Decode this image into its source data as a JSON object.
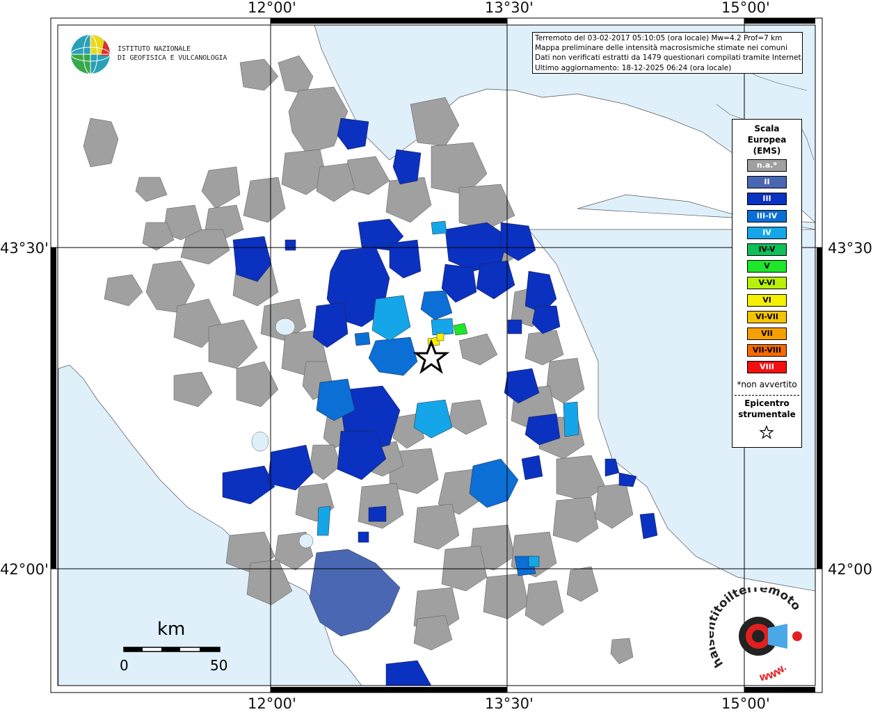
{
  "axes": {
    "top_lon_labels": [
      "12°00'",
      "13°30'",
      "15°00'"
    ],
    "bottom_lon_labels": [
      "12°00'",
      "13°30'",
      "15°00'"
    ],
    "left_lat_labels": [
      "43°30'",
      "42°00'"
    ],
    "right_lat_labels": [
      "43°30'",
      "42°00'"
    ]
  },
  "institute": {
    "name_line1": "ISTITUTO NAZIONALE",
    "name_line2": "DI GEOFISICA E VULCANOLOGIA"
  },
  "info": {
    "line1": "Terremoto del 03-02-2017 05:10:05 (ora locale) Mw=4.2 Prof=7 km",
    "line2": "Mappa preliminare delle intensità macrosismiche stimate nei comuni",
    "line3": "Dati non verificati estratti da 1479 questionari compilati tramite Internet.",
    "line4": "Ultimo aggiornamento: 18-12-2025 06:24 (ora locale)"
  },
  "legend": {
    "title_line1": "Scala",
    "title_line2": "Europea",
    "title_line3": "(EMS)",
    "items": [
      {
        "label": "n.a.*",
        "color": "#a0a0a0",
        "text_color": "#ffffff"
      },
      {
        "label": "II",
        "color": "#4a67b4",
        "text_color": "#ffffff"
      },
      {
        "label": "III",
        "color": "#0a31c0",
        "text_color": "#ffffff"
      },
      {
        "label": "III-IV",
        "color": "#0b6fd6",
        "text_color": "#ffffff"
      },
      {
        "label": "IV",
        "color": "#14a6e8",
        "text_color": "#ffffff"
      },
      {
        "label": "IV-V",
        "color": "#0fbf5a",
        "text_color": "#000000"
      },
      {
        "label": "V",
        "color": "#1ee62a",
        "text_color": "#000000"
      },
      {
        "label": "V-VI",
        "color": "#b8f00a",
        "text_color": "#000000"
      },
      {
        "label": "VI",
        "color": "#f5f000",
        "text_color": "#000000"
      },
      {
        "label": "VI-VII",
        "color": "#f5c400",
        "text_color": "#000000"
      },
      {
        "label": "VII",
        "color": "#f5a000",
        "text_color": "#000000"
      },
      {
        "label": "VII-VIII",
        "color": "#f56a00",
        "text_color": "#000000"
      },
      {
        "label": "VIII",
        "color": "#f51010",
        "text_color": "#ffffff"
      }
    ],
    "note": "*non avvertito",
    "epicenter_line1": "Epicentro",
    "epicenter_line2": "strumentale"
  },
  "scale_bar": {
    "unit": "km",
    "start": "0",
    "end": "50"
  },
  "watermark": {
    "text": "haisentitoilterremoto.it",
    "url_text": "WWW."
  },
  "colors": {
    "sea": "#dff0fb",
    "land": "#ffffff",
    "na_gray": "#a0a0a0"
  }
}
